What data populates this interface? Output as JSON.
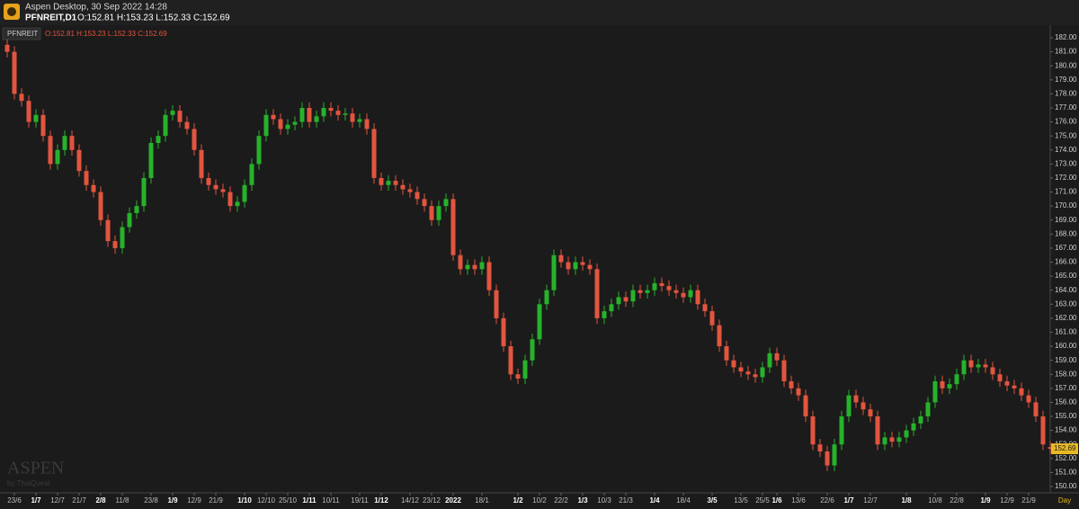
{
  "header": {
    "app": "Aspen Desktop, 30 Sep 2022 14:28",
    "symbol": "PFNREIT,D1",
    "ohlc": "O:152.81 H:153.23 L:152.33 C:152.69"
  },
  "watermark": {
    "brand": "ASPEN",
    "by": "by ThaiQuest"
  },
  "chart_data": {
    "type": "candlestick",
    "series_label": "PFNREIT",
    "ohlc_text": "O:152.81 H:153.23 L:152.33 C:152.69",
    "timeframe_label": "Day",
    "up_color": "#27b22b",
    "down_color": "#e2553f",
    "last_price_color": "#e8b923",
    "open": [
      181.5,
      181,
      178,
      177.5,
      176,
      176.5,
      175,
      173,
      174,
      175,
      174,
      172.5,
      171.5,
      171,
      169,
      167.5,
      167,
      168.5,
      169.5,
      170,
      172,
      174.5,
      175,
      176.5,
      176.8,
      176,
      175.5,
      174,
      172,
      171.5,
      171.2,
      171,
      170,
      170.3,
      171.5,
      173,
      175,
      176.5,
      176.2,
      175.5,
      175.8,
      176,
      177,
      176,
      176.4,
      177,
      176.8,
      176.5,
      176.6,
      176,
      176.2,
      175.5,
      172,
      171.5,
      171.8,
      171.5,
      171.2,
      171,
      170.5,
      170,
      169,
      170,
      170.5,
      166.5,
      165.5,
      165.8,
      165.5,
      166,
      164,
      162,
      160,
      158,
      157.7,
      159,
      160.5,
      163,
      164,
      166.5,
      166,
      165.5,
      166,
      165.8,
      165.5,
      162,
      162.5,
      163,
      163.5,
      163.2,
      164,
      163.8,
      164,
      164.5,
      164.3,
      164,
      163.8,
      163.5,
      164,
      163,
      162.5,
      161.5,
      160,
      159,
      158.5,
      158.2,
      158,
      157.8,
      158.5,
      159.5,
      159,
      157.5,
      157,
      156.5,
      155,
      153,
      152.5,
      151.5,
      153,
      155,
      156.5,
      156,
      155.5,
      155,
      153,
      153.5,
      153.2,
      153.5,
      154,
      154.5,
      155,
      156,
      157.5,
      157,
      157.3,
      158,
      159,
      158.5,
      158.7,
      158.5,
      158,
      157.5,
      157.2,
      157,
      156.5,
      156,
      155,
      152.81
    ],
    "high": [
      181.9,
      181.4,
      178.4,
      177.9,
      176.9,
      176.9,
      175.4,
      174.4,
      175.4,
      175.4,
      174.4,
      172.9,
      171.9,
      171.4,
      169.4,
      167.9,
      168.9,
      169.9,
      170.4,
      172.4,
      174.9,
      175.4,
      176.9,
      177.2,
      177.2,
      176.4,
      175.9,
      174.4,
      172.4,
      171.9,
      171.6,
      171.4,
      170.7,
      171.9,
      173.4,
      175.4,
      176.9,
      176.9,
      176.6,
      176.2,
      176.4,
      177.4,
      177.4,
      176.8,
      177.4,
      177.4,
      177.2,
      177,
      177,
      176.6,
      176.6,
      175.9,
      172.4,
      172.2,
      172.2,
      171.9,
      171.6,
      171.4,
      170.9,
      170.4,
      170.4,
      170.9,
      170.9,
      166.9,
      166.2,
      166.2,
      166.4,
      166.4,
      164.4,
      162.4,
      160.4,
      158.4,
      159.4,
      160.9,
      163.4,
      164.4,
      166.9,
      166.9,
      166.4,
      166.4,
      166.4,
      166.2,
      165.9,
      162.9,
      163.4,
      163.9,
      163.9,
      164.4,
      164.4,
      164.4,
      164.9,
      164.9,
      164.7,
      164.4,
      164.2,
      164.4,
      164.4,
      163.4,
      162.9,
      161.9,
      160.4,
      159.4,
      158.9,
      158.6,
      158.4,
      158.9,
      159.9,
      159.9,
      159.4,
      157.9,
      157.4,
      156.9,
      155.4,
      153.4,
      152.9,
      153.4,
      155.4,
      156.9,
      156.9,
      156.4,
      155.9,
      155.4,
      153.9,
      153.9,
      153.9,
      154.4,
      154.9,
      155.4,
      156.4,
      157.9,
      157.9,
      157.7,
      158.4,
      159.4,
      159.4,
      159.1,
      159.1,
      158.9,
      158.4,
      157.9,
      157.6,
      157.4,
      156.9,
      156.4,
      155.4,
      153.23
    ],
    "low": [
      180.6,
      177.6,
      177.1,
      175.6,
      175.6,
      174.6,
      172.6,
      172.6,
      173.6,
      173.6,
      172.1,
      171.1,
      170.6,
      168.6,
      167.1,
      166.6,
      166.6,
      168.1,
      169.1,
      169.6,
      171.6,
      174.1,
      174.6,
      176.1,
      175.6,
      175.1,
      173.6,
      171.6,
      171.1,
      170.8,
      170.6,
      169.6,
      169.6,
      169.9,
      171.1,
      172.6,
      174.6,
      175.8,
      175.1,
      175.1,
      175.4,
      175.6,
      175.6,
      175.6,
      176,
      176.4,
      176.1,
      176.1,
      175.6,
      175.6,
      175.1,
      171.6,
      171.1,
      171.1,
      171.1,
      170.8,
      170.6,
      170.1,
      169.6,
      168.6,
      168.6,
      169.6,
      166.1,
      165.1,
      165.1,
      165.1,
      165.1,
      163.6,
      161.6,
      159.6,
      157.6,
      157.3,
      157.3,
      158.6,
      160.1,
      162.6,
      163.6,
      165.6,
      165.1,
      165.1,
      165.4,
      165.1,
      161.6,
      161.6,
      162.1,
      162.6,
      162.8,
      162.8,
      163.4,
      163.4,
      163.6,
      163.9,
      163.6,
      163.4,
      163.1,
      163.1,
      162.6,
      162.1,
      161.1,
      159.6,
      158.6,
      158.1,
      157.8,
      157.6,
      157.4,
      157.4,
      158.1,
      158.6,
      157.1,
      156.6,
      156.1,
      154.6,
      152.6,
      152.1,
      151.1,
      151.1,
      152.6,
      154.6,
      155.6,
      155.1,
      154.6,
      152.6,
      152.6,
      152.8,
      152.8,
      153.1,
      153.6,
      154.1,
      154.6,
      155.6,
      156.6,
      156.6,
      156.9,
      157.6,
      158.1,
      158.1,
      158.1,
      157.6,
      157.1,
      156.8,
      156.6,
      156.1,
      155.6,
      154.6,
      152.6,
      152.33
    ],
    "close": [
      181,
      178,
      177.5,
      176,
      176.5,
      175,
      173,
      174,
      175,
      174,
      172.5,
      171.5,
      171,
      169,
      167.5,
      167,
      168.5,
      169.5,
      170,
      172,
      174.5,
      175,
      176.5,
      176.8,
      176,
      175.5,
      174,
      172,
      171.5,
      171.2,
      171,
      170,
      170.3,
      171.5,
      173,
      175,
      176.5,
      176.2,
      175.5,
      175.8,
      176,
      177,
      176,
      176.4,
      177,
      176.8,
      176.5,
      176.6,
      176,
      176.2,
      175.5,
      172,
      171.5,
      171.8,
      171.5,
      171.2,
      171,
      170.5,
      170,
      169,
      170,
      170.5,
      166.5,
      165.5,
      165.8,
      165.5,
      166,
      164,
      162,
      160,
      158,
      157.7,
      159,
      160.5,
      163,
      164,
      166.5,
      166,
      165.5,
      166,
      165.8,
      165.5,
      162,
      162.5,
      163,
      163.5,
      163.2,
      164,
      163.8,
      164,
      164.5,
      164.3,
      164,
      163.8,
      163.5,
      164,
      163,
      162.5,
      161.5,
      160,
      159,
      158.5,
      158.2,
      158,
      157.8,
      158.5,
      159.5,
      159,
      157.5,
      157,
      156.5,
      155,
      153,
      152.5,
      151.5,
      153,
      155,
      156.5,
      156,
      155.5,
      155,
      153,
      153.5,
      153.2,
      153.5,
      154,
      154.5,
      155,
      156,
      157.5,
      157,
      157.3,
      158,
      159,
      158.5,
      158.7,
      158.5,
      158,
      157.5,
      157.2,
      157,
      156.5,
      156,
      155,
      153,
      152.69
    ],
    "ylim": [
      149.55,
      182.9
    ],
    "yticks": [
      {
        "value": 150,
        "label": "150.00"
      },
      {
        "value": 151,
        "label": "151.00"
      },
      {
        "value": 152,
        "label": "152.00"
      },
      {
        "value": 153,
        "label": "153.00"
      },
      {
        "value": 154,
        "label": "154.00"
      },
      {
        "value": 155,
        "label": "155.00"
      },
      {
        "value": 156,
        "label": "156.00"
      },
      {
        "value": 157,
        "label": "157.00"
      },
      {
        "value": 158,
        "label": "158.00"
      },
      {
        "value": 159,
        "label": "159.00"
      },
      {
        "value": 160,
        "label": "160.00"
      },
      {
        "value": 161,
        "label": "161.00"
      },
      {
        "value": 162,
        "label": "162.00"
      },
      {
        "value": 163,
        "label": "163.00"
      },
      {
        "value": 164,
        "label": "164.00"
      },
      {
        "value": 165,
        "label": "165.00"
      },
      {
        "value": 166,
        "label": "166.00"
      },
      {
        "value": 167,
        "label": "167.00"
      },
      {
        "value": 168,
        "label": "168.00"
      },
      {
        "value": 169,
        "label": "169.00"
      },
      {
        "value": 170,
        "label": "170.00"
      },
      {
        "value": 171,
        "label": "171.00"
      },
      {
        "value": 172,
        "label": "172.00"
      },
      {
        "value": 173,
        "label": "173.00"
      },
      {
        "value": 174,
        "label": "174.00"
      },
      {
        "value": 175,
        "label": "175.00"
      },
      {
        "value": 176,
        "label": "176.00"
      },
      {
        "value": 177,
        "label": "177.00"
      },
      {
        "value": 178,
        "label": "178.00"
      },
      {
        "value": 179,
        "label": "179.00"
      },
      {
        "value": 180,
        "label": "180.00"
      },
      {
        "value": 181,
        "label": "181.00"
      },
      {
        "value": 182,
        "label": "182.00"
      }
    ],
    "xticks": [
      {
        "value": 1,
        "label": "23/6"
      },
      {
        "value": 4,
        "label": "1/7",
        "bold": true
      },
      {
        "value": 7,
        "label": "12/7"
      },
      {
        "value": 10,
        "label": "21/7"
      },
      {
        "value": 13,
        "label": "2/8",
        "bold": true
      },
      {
        "value": 16,
        "label": "11/8"
      },
      {
        "value": 20,
        "label": "23/8"
      },
      {
        "value": 23,
        "label": "1/9",
        "bold": true
      },
      {
        "value": 26,
        "label": "12/9"
      },
      {
        "value": 29,
        "label": "21/9"
      },
      {
        "value": 33,
        "label": "1/10",
        "bold": true
      },
      {
        "value": 36,
        "label": "12/10"
      },
      {
        "value": 39,
        "label": "25/10"
      },
      {
        "value": 42,
        "label": "1/11",
        "bold": true
      },
      {
        "value": 45,
        "label": "10/11"
      },
      {
        "value": 49,
        "label": "19/11"
      },
      {
        "value": 52,
        "label": "1/12",
        "bold": true
      },
      {
        "value": 56,
        "label": "14/12"
      },
      {
        "value": 59,
        "label": "23/12"
      },
      {
        "value": 62,
        "label": "2022",
        "bold": true
      },
      {
        "value": 66,
        "label": "18/1"
      },
      {
        "value": 71,
        "label": "1/2",
        "bold": true
      },
      {
        "value": 74,
        "label": "10/2"
      },
      {
        "value": 77,
        "label": "22/2"
      },
      {
        "value": 80,
        "label": "1/3",
        "bold": true
      },
      {
        "value": 83,
        "label": "10/3"
      },
      {
        "value": 86,
        "label": "21/3"
      },
      {
        "value": 90,
        "label": "1/4",
        "bold": true
      },
      {
        "value": 94,
        "label": "18/4"
      },
      {
        "value": 98,
        "label": "3/5",
        "bold": true
      },
      {
        "value": 102,
        "label": "13/5"
      },
      {
        "value": 105,
        "label": "25/5"
      },
      {
        "value": 107,
        "label": "1/6",
        "bold": true
      },
      {
        "value": 110,
        "label": "13/6"
      },
      {
        "value": 114,
        "label": "22/6"
      },
      {
        "value": 117,
        "label": "1/7",
        "bold": true
      },
      {
        "value": 120,
        "label": "12/7"
      },
      {
        "value": 125,
        "label": "1/8",
        "bold": true
      },
      {
        "value": 129,
        "label": "10/8"
      },
      {
        "value": 132,
        "label": "22/8"
      },
      {
        "value": 136,
        "label": "1/9",
        "bold": true
      },
      {
        "value": 139,
        "label": "12/9"
      },
      {
        "value": 142,
        "label": "21/9"
      }
    ]
  }
}
